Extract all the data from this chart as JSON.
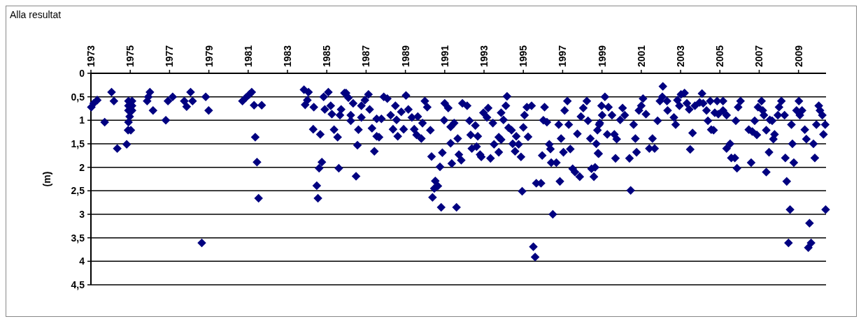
{
  "chart_data": {
    "type": "scatter",
    "title": "Alla resultat",
    "ylabel": "(m)",
    "xlim": [
      1973,
      2010.4
    ],
    "xticks": [
      1973,
      1975,
      1977,
      1979,
      1981,
      1983,
      1985,
      1987,
      1989,
      1991,
      1993,
      1995,
      1997,
      1999,
      2001,
      2003,
      2005,
      2007,
      2009
    ],
    "ylim": [
      4.5,
      0
    ],
    "yticks": [
      {
        "value": 0,
        "label": "0"
      },
      {
        "value": 0.5,
        "label": "0,5"
      },
      {
        "value": 1,
        "label": "1"
      },
      {
        "value": 1.5,
        "label": "1,5"
      },
      {
        "value": 2,
        "label": "2"
      },
      {
        "value": 2.5,
        "label": "2,5"
      },
      {
        "value": 3,
        "label": "3"
      },
      {
        "value": 3.5,
        "label": "3,5"
      },
      {
        "value": 4,
        "label": "4"
      },
      {
        "value": 4.5,
        "label": "4,5"
      }
    ],
    "grid": "y",
    "marker": "diamond",
    "series": [
      {
        "color": "#000080",
        "x": [
          1973.02,
          1973.14,
          1973.32,
          1973.7,
          1974.05,
          1974.17,
          1974.34,
          1974.82,
          1974.89,
          1975.03,
          1974.91,
          1974.97,
          1974.91,
          1975.09,
          1974.91,
          1975.09,
          1974.91,
          1975.09,
          1975.86,
          1975.92,
          1976,
          1976.16,
          1976.81,
          1976.92,
          1977.16,
          1977.75,
          1977.87,
          1978.07,
          1978.17,
          1978.64,
          1978.84,
          1978.99,
          1980.71,
          1980.88,
          1981.06,
          1981.18,
          1981.3,
          1981.69,
          1981.36,
          1981.45,
          1981.53,
          1983.84,
          1984.07,
          1983.9,
          1984.01,
          1984.34,
          1984.31,
          1984.67,
          1984.49,
          1984.55,
          1984.61,
          1984.75,
          1984.84,
          1985.08,
          1984.9,
          1985.2,
          1985.26,
          1985.37,
          1985.55,
          1985.61,
          1985.73,
          1985.67,
          1985.9,
          1985.98,
          1986.1,
          1986.34,
          1986.22,
          1986.22,
          1986.76,
          1986.61,
          1986.56,
          1986.49,
          1986.76,
          1986.94,
          1987.12,
          1987.18,
          1987.3,
          1987.54,
          1987.78,
          1987.54,
          1987.66,
          1987.42,
          1987.9,
          1988.08,
          1988.49,
          1988.25,
          1988.55,
          1988.37,
          1988.61,
          1988.91,
          1988.79,
          1989.03,
          1989.15,
          1989.33,
          1989.63,
          1989.87,
          1989.45,
          1989.57,
          1989.81,
          1989.99,
          1990.11,
          1990.27,
          1990.33,
          1990.52,
          1990.47,
          1990.65,
          1990.38,
          1990.82,
          1990.76,
          1990.88,
          1990.97,
          1991,
          1991.18,
          1991.3,
          1991.48,
          1991.3,
          1991.66,
          1991.36,
          1991.72,
          1991.84,
          1991.6,
          1991.9,
          1992.14,
          1992.26,
          1992.56,
          1992.32,
          1992.68,
          1992.38,
          1992.62,
          1992.8,
          1992.86,
          1992.97,
          1993.21,
          1993.15,
          1993.45,
          1993.75,
          1993.87,
          1993.51,
          1993.75,
          1993.33,
          1993.87,
          1993.99,
          1994.11,
          1994.17,
          1994.25,
          1994.4,
          1994.46,
          1994.64,
          1994.76,
          1994.58,
          1994.88,
          1994.94,
          1995,
          1995.06,
          1995.18,
          1995.42,
          1995.24,
          1995.51,
          1995.6,
          1995.66,
          1995.9,
          1995.96,
          1996.08,
          1996.02,
          1996.2,
          1996.32,
          1996.38,
          1996.42,
          1996.68,
          1996.5,
          1996.86,
          1996.8,
          1996.92,
          1997.04,
          1997.1,
          1997.24,
          1997.31,
          1997.39,
          1997.51,
          1997.63,
          1997.87,
          1997.75,
          1997.93,
          1998.05,
          1998.23,
          1998.29,
          1998.41,
          1998.47,
          1998.59,
          1998.65,
          1998.71,
          1998.77,
          1998.83,
          1998.89,
          1998.86,
          1998.8,
          1999.15,
          1998.98,
          1999.33,
          1999.01,
          1999.51,
          1999.27,
          1999.63,
          1999.75,
          1999.69,
          1999.93,
          2000.05,
          2000.16,
          2000.4,
          2000.61,
          2000.7,
          2000.76,
          2000.46,
          2000.88,
          2001,
          2001.09,
          2001.24,
          2001.41,
          2001.68,
          2001.57,
          2001.83,
          2001.95,
          2002.1,
          2002.07,
          2002.31,
          2002.34,
          2002.66,
          2002.75,
          2002.84,
          2003.02,
          2003.2,
          2002.94,
          2003.32,
          2003.44,
          2003.73,
          2003.97,
          2004.09,
          2004.15,
          2004.32,
          2004.51,
          2004.39,
          2004.56,
          2004.68,
          2003.61,
          2003.49,
          2004.86,
          2005.16,
          2004.74,
          2004.92,
          2005.16,
          2005.34,
          2005.34,
          2005.52,
          2005.58,
          2005.76,
          2005.87,
          2005.81,
          2005.93,
          2006.05,
          2006.47,
          2006.65,
          2006.88,
          2006.59,
          2006.77,
          2006.94,
          2007.12,
          2007.18,
          2007.24,
          2007.36,
          2007.54,
          2007.66,
          2007.72,
          2007.78,
          2007.5,
          2007.36,
          2007.95,
          2008.01,
          2008.13,
          2008.29,
          2008.64,
          2008.69,
          2008.33,
          2008.76,
          2008.4,
          2008.57,
          2008.49,
          2009.02,
          2008.9,
          2009.07,
          2009.18,
          2009.32,
          2009.4,
          2009.76,
          2009.83,
          2009.56,
          2009.5,
          2009.64,
          2009.91,
          2010.03,
          2010.09,
          2010.21,
          2010.36,
          2010.27,
          2010.38
        ],
        "values": [
          0.72,
          0.64,
          0.57,
          1.04,
          0.4,
          0.59,
          1.6,
          1.51,
          1.21,
          1.21,
          1.04,
          0.92,
          0.79,
          0.79,
          0.69,
          0.69,
          0.59,
          0.59,
          0.59,
          0.5,
          0.4,
          0.79,
          1,
          0.59,
          0.5,
          0.59,
          0.71,
          0.4,
          0.59,
          3.61,
          0.5,
          0.79,
          0.59,
          0.52,
          0.45,
          0.4,
          0.68,
          0.68,
          1.36,
          1.89,
          2.66,
          0.35,
          0.4,
          0.67,
          0.57,
          0.72,
          1.19,
          1.3,
          2.39,
          2.66,
          2.02,
          1.89,
          0.5,
          0.4,
          0.77,
          0.69,
          0.87,
          1.2,
          1.36,
          2.02,
          0.77,
          0.89,
          0.42,
          0.42,
          0.52,
          0.64,
          0.89,
          1.01,
          0.94,
          1.2,
          1.53,
          2.19,
          0.69,
          0.57,
          0.45,
          0.77,
          1.17,
          0.97,
          0.97,
          1.34,
          1.36,
          1.66,
          0.5,
          0.54,
          0.69,
          0.89,
          0.99,
          1.19,
          1.34,
          1.19,
          0.82,
          0.47,
          0.77,
          0.94,
          0.92,
          1.06,
          1.19,
          1.31,
          1.39,
          0.59,
          0.72,
          1.21,
          1.77,
          2.29,
          2.45,
          2.4,
          2.64,
          2.85,
          1.99,
          1.69,
          1,
          0.64,
          0.74,
          1.14,
          1.06,
          1.49,
          1.39,
          1.92,
          1.73,
          1.85,
          2.85,
          0.64,
          0.69,
          1.01,
          1.11,
          1.31,
          1.34,
          1.6,
          1.56,
          1.73,
          1.78,
          0.84,
          0.74,
          0.94,
          1.06,
          1.36,
          1.41,
          1.51,
          1.68,
          1.81,
          0.84,
          0.99,
          0.69,
          0.49,
          1.16,
          1.21,
          1.5,
          1.34,
          1.51,
          1.66,
          1.78,
          2.51,
          1.15,
          0.89,
          0.72,
          0.69,
          1.35,
          3.69,
          3.91,
          2.34,
          2.34,
          1.75,
          0.72,
          1,
          1.04,
          1.51,
          1.61,
          1.9,
          1.9,
          3,
          2.3,
          1.09,
          1.39,
          1.68,
          0.79,
          0.59,
          1.09,
          1.61,
          2.03,
          2.1,
          2.2,
          1.29,
          0.92,
          0.74,
          0.59,
          1.01,
          1.39,
          2.03,
          2.2,
          2,
          1.5,
          1.21,
          1.71,
          1.06,
          1.09,
          1.7,
          0.5,
          0.69,
          0.72,
          0.89,
          0.89,
          1.3,
          1.3,
          1.4,
          1.81,
          0.99,
          0.74,
          0.89,
          1.81,
          1.09,
          1.39,
          1.68,
          2.49,
          0.79,
          0.69,
          0.54,
          0.87,
          1.6,
          1.6,
          1.39,
          1.01,
          0.59,
          0.28,
          0.5,
          0.59,
          0.79,
          0.94,
          1.09,
          0.57,
          0.45,
          0.42,
          0.69,
          0.64,
          0.77,
          0.69,
          0.62,
          0.43,
          0.64,
          0.79,
          0.59,
          1.01,
          1.2,
          1.21,
          1.27,
          1.62,
          0.59,
          0.59,
          0.84,
          0.87,
          0.79,
          0.89,
          1.6,
          1.5,
          1.8,
          1.8,
          2.02,
          1.01,
          0.72,
          0.59,
          1.2,
          1.24,
          1.31,
          1.9,
          1.01,
          0.72,
          0.59,
          0.79,
          0.89,
          1.21,
          0.99,
          1.01,
          1.4,
          1.3,
          1.68,
          2.1,
          0.89,
          0.72,
          0.59,
          0.89,
          1.09,
          1.5,
          1.8,
          1.9,
          2.3,
          2.9,
          3.61,
          0.59,
          0.79,
          0.89,
          0.79,
          1.2,
          1.4,
          1.5,
          1.8,
          3.19,
          3.71,
          3.61,
          1.09,
          0.69,
          0.79,
          0.89,
          1.09,
          1.3,
          2.9
        ]
      }
    ]
  }
}
